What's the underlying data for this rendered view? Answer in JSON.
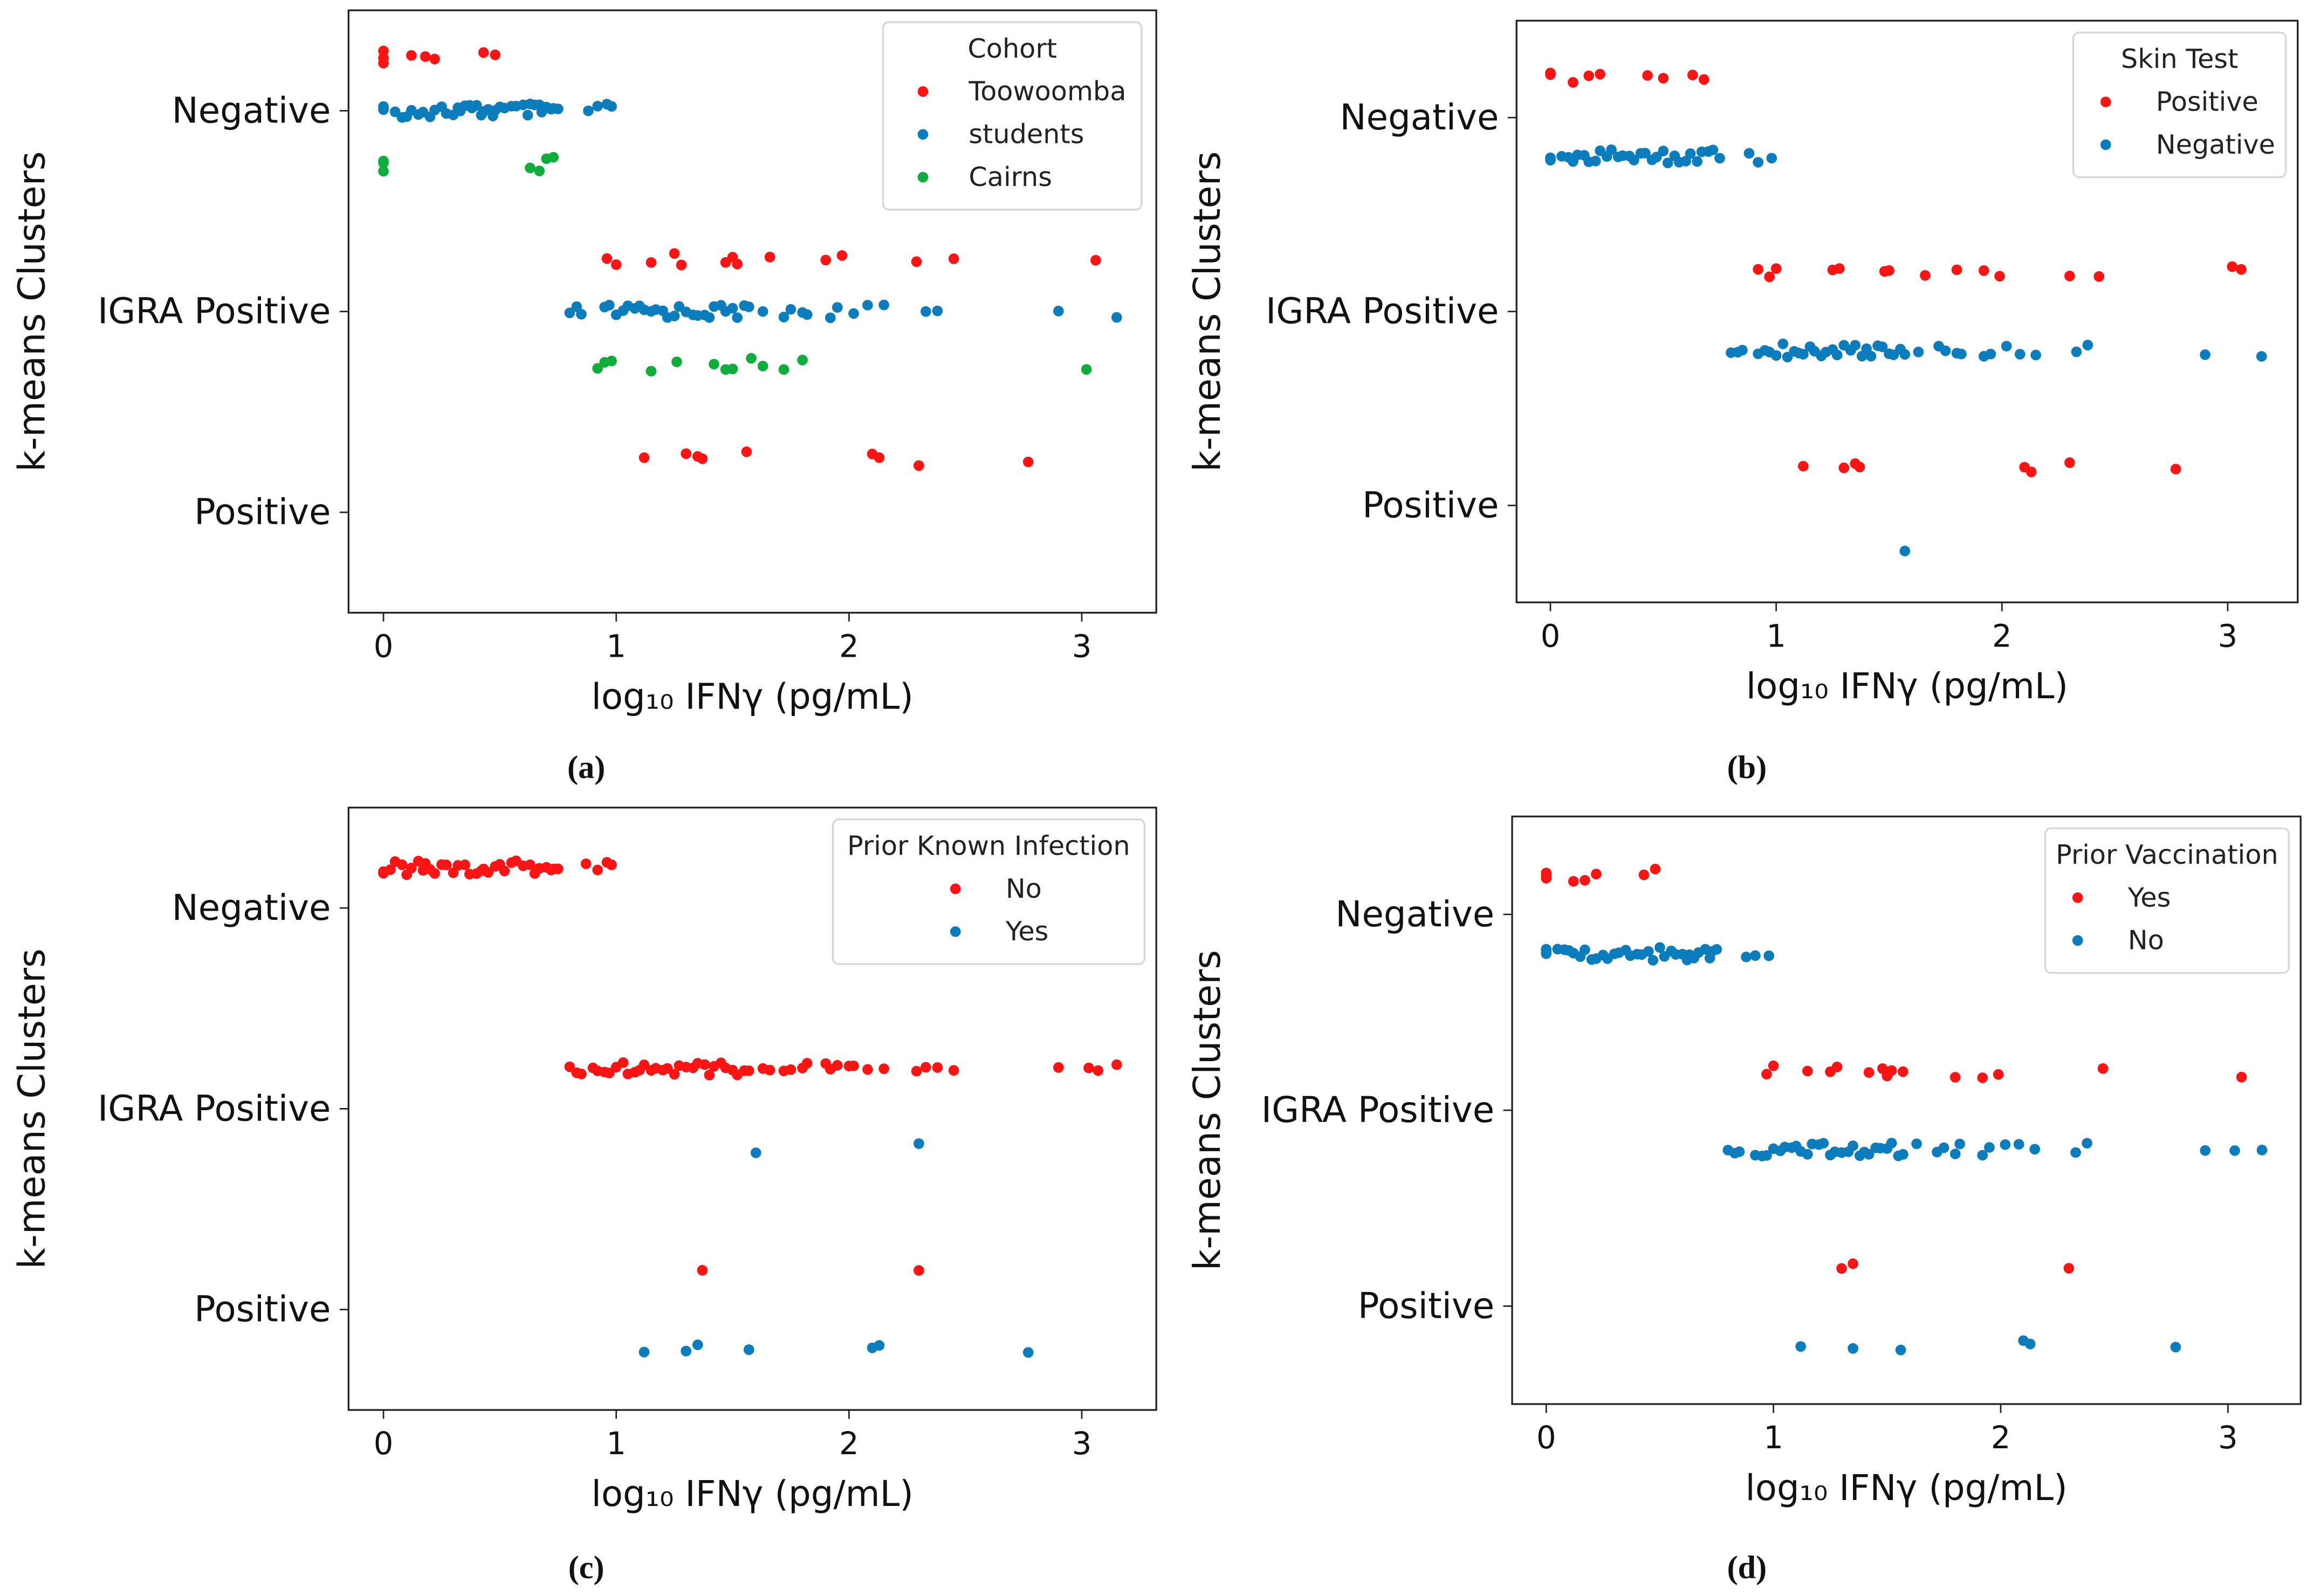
{
  "colors": {
    "red": "#fb1414",
    "blue": "#0b7cbc",
    "green": "#0fae3c"
  },
  "chart_data": [
    {
      "type": "scatter",
      "panel": "(a)",
      "xlabel": "log₁₀ IFNγ (pg/mL)",
      "ylabel": "k-means Clusters",
      "categories": [
        "Negative",
        "IGRA Positive",
        "Positive"
      ],
      "xticks": [
        "0",
        "1",
        "2",
        "3"
      ],
      "xlim": [
        -0.15,
        3.32
      ],
      "legend": {
        "title": "Cohort",
        "placement": "top-right"
      },
      "series": [
        {
          "name": "Toowoomba",
          "color": "red",
          "points": {
            "Negative": [
              0,
              0,
              0,
              0.12,
              0.18,
              0.22,
              0.43,
              0.48
            ],
            "IGRA Positive": [
              0.96,
              1.0,
              1.15,
              1.25,
              1.28,
              1.47,
              1.5,
              1.52,
              1.66,
              1.9,
              1.97,
              2.29,
              2.45,
              3.06
            ],
            "Positive": [
              1.12,
              1.3,
              1.35,
              1.37,
              1.56,
              2.1,
              2.13,
              2.3,
              2.77
            ]
          }
        },
        {
          "name": "students",
          "color": "blue",
          "points": {
            "Negative": [
              0,
              0,
              0,
              0.05,
              0.08,
              0.1,
              0.12,
              0.15,
              0.17,
              0.2,
              0.22,
              0.25,
              0.27,
              0.3,
              0.32,
              0.33,
              0.35,
              0.37,
              0.38,
              0.4,
              0.42,
              0.43,
              0.45,
              0.47,
              0.48,
              0.5,
              0.52,
              0.55,
              0.57,
              0.6,
              0.62,
              0.63,
              0.65,
              0.67,
              0.68,
              0.7,
              0.72,
              0.73,
              0.75,
              0.88,
              0.92,
              0.96,
              0.98
            ],
            "IGRA Positive": [
              0.8,
              0.83,
              0.85,
              0.95,
              0.97,
              1.0,
              1.03,
              1.05,
              1.08,
              1.1,
              1.12,
              1.15,
              1.17,
              1.2,
              1.22,
              1.25,
              1.27,
              1.3,
              1.33,
              1.35,
              1.38,
              1.4,
              1.42,
              1.45,
              1.47,
              1.5,
              1.52,
              1.55,
              1.57,
              1.63,
              1.72,
              1.75,
              1.8,
              1.82,
              1.92,
              1.95,
              2.02,
              2.08,
              2.15,
              2.33,
              2.38,
              2.9,
              3.15
            ],
            "Positive": []
          }
        },
        {
          "name": "Cairns",
          "color": "green",
          "points": {
            "Negative": [
              0,
              0,
              0,
              0.63,
              0.67,
              0.7,
              0.73
            ],
            "IGRA Positive": [
              0.92,
              0.95,
              0.98,
              1.15,
              1.26,
              1.42,
              1.47,
              1.5,
              1.58,
              1.63,
              1.72,
              1.8,
              3.02
            ],
            "Positive": []
          }
        }
      ]
    },
    {
      "type": "scatter",
      "panel": "(b)",
      "xlabel": "log₁₀ IFNγ (pg/mL)",
      "ylabel": "k-means Clusters",
      "categories": [
        "Negative",
        "IGRA Positive",
        "Positive"
      ],
      "xticks": [
        "0",
        "1",
        "2",
        "3"
      ],
      "xlim": [
        -0.15,
        3.31
      ],
      "legend": {
        "title": "Skin Test",
        "placement": "top-right"
      },
      "series": [
        {
          "name": "Positive",
          "color": "red",
          "points": {
            "Negative": [
              0,
              0,
              0.1,
              0.17,
              0.22,
              0.43,
              0.5,
              0.63,
              0.68
            ],
            "IGRA Positive": [
              0.92,
              0.97,
              1.0,
              1.25,
              1.28,
              1.48,
              1.5,
              1.66,
              1.8,
              1.92,
              1.99,
              2.3,
              2.43,
              3.02,
              3.06
            ],
            "Positive": [
              1.12,
              1.3,
              1.35,
              1.37,
              2.1,
              2.13,
              2.3,
              2.77
            ]
          }
        },
        {
          "name": "Negative",
          "color": "blue",
          "points": {
            "Negative": [
              0,
              0,
              0,
              0.05,
              0.08,
              0.1,
              0.12,
              0.15,
              0.17,
              0.2,
              0.22,
              0.25,
              0.27,
              0.3,
              0.32,
              0.35,
              0.37,
              0.4,
              0.42,
              0.45,
              0.47,
              0.5,
              0.52,
              0.55,
              0.57,
              0.6,
              0.62,
              0.65,
              0.67,
              0.7,
              0.72,
              0.75,
              0.88,
              0.92,
              0.98
            ],
            "IGRA Positive": [
              0.8,
              0.83,
              0.85,
              0.92,
              0.95,
              0.97,
              1.0,
              1.03,
              1.05,
              1.08,
              1.1,
              1.12,
              1.15,
              1.17,
              1.2,
              1.22,
              1.25,
              1.27,
              1.3,
              1.33,
              1.35,
              1.38,
              1.4,
              1.42,
              1.45,
              1.47,
              1.5,
              1.52,
              1.55,
              1.57,
              1.63,
              1.72,
              1.75,
              1.8,
              1.82,
              1.92,
              1.95,
              2.02,
              2.08,
              2.15,
              2.33,
              2.38,
              2.9,
              3.15
            ],
            "Positive": [
              1.57
            ]
          }
        }
      ]
    },
    {
      "type": "scatter",
      "panel": "(c)",
      "xlabel": "log₁₀ IFNγ (pg/mL)",
      "ylabel": "k-means Clusters",
      "categories": [
        "Negative",
        "IGRA Positive",
        "Positive"
      ],
      "xticks": [
        "0",
        "1",
        "2",
        "3"
      ],
      "xlim": [
        -0.15,
        3.32
      ],
      "legend": {
        "title": "Prior Known Infection",
        "placement": "top-right"
      },
      "series": [
        {
          "name": "No",
          "color": "red",
          "points": {
            "Negative": [
              0,
              0,
              0,
              0.03,
              0.05,
              0.08,
              0.1,
              0.12,
              0.15,
              0.17,
              0.18,
              0.2,
              0.22,
              0.25,
              0.27,
              0.3,
              0.32,
              0.35,
              0.37,
              0.4,
              0.42,
              0.43,
              0.45,
              0.48,
              0.5,
              0.52,
              0.55,
              0.57,
              0.6,
              0.63,
              0.65,
              0.67,
              0.7,
              0.72,
              0.73,
              0.75,
              0.87,
              0.92,
              0.96,
              0.98
            ],
            "IGRA Positive": [
              0.8,
              0.83,
              0.85,
              0.9,
              0.92,
              0.95,
              0.97,
              1.0,
              1.03,
              1.05,
              1.08,
              1.1,
              1.12,
              1.15,
              1.17,
              1.2,
              1.22,
              1.25,
              1.27,
              1.3,
              1.33,
              1.35,
              1.38,
              1.4,
              1.42,
              1.45,
              1.47,
              1.5,
              1.52,
              1.55,
              1.57,
              1.63,
              1.66,
              1.72,
              1.75,
              1.8,
              1.82,
              1.9,
              1.92,
              1.95,
              2.0,
              2.02,
              2.08,
              2.15,
              2.29,
              2.33,
              2.38,
              2.45,
              2.9,
              3.03,
              3.07,
              3.15
            ],
            "Positive": [
              1.37,
              2.3
            ]
          }
        },
        {
          "name": "Yes",
          "color": "blue",
          "points": {
            "Negative": [],
            "IGRA Positive": [
              1.6,
              2.3
            ],
            "Positive": [
              1.12,
              1.3,
              1.35,
              1.57,
              2.1,
              2.13,
              2.77
            ]
          }
        }
      ]
    },
    {
      "type": "scatter",
      "panel": "(d)",
      "xlabel": "log₁₀ IFNγ (pg/mL)",
      "ylabel": "k-means Clusters",
      "categories": [
        "Negative",
        "IGRA Positive",
        "Positive"
      ],
      "xticks": [
        "0",
        "1",
        "2",
        "3"
      ],
      "xlim": [
        -0.15,
        3.32
      ],
      "legend": {
        "title": "Prior Vaccination",
        "placement": "top-right"
      },
      "series": [
        {
          "name": "Yes",
          "color": "red",
          "points": {
            "Negative": [
              0,
              0,
              0,
              0.12,
              0.17,
              0.22,
              0.43,
              0.48
            ],
            "IGRA Positive": [
              0.97,
              1.0,
              1.15,
              1.25,
              1.28,
              1.42,
              1.48,
              1.5,
              1.52,
              1.57,
              1.8,
              1.92,
              1.99,
              2.45,
              3.06
            ],
            "Positive": [
              1.3,
              1.35,
              2.3
            ]
          }
        },
        {
          "name": "No",
          "color": "blue",
          "points": {
            "Negative": [
              0,
              0,
              0,
              0.05,
              0.08,
              0.1,
              0.12,
              0.15,
              0.17,
              0.2,
              0.22,
              0.25,
              0.27,
              0.3,
              0.32,
              0.35,
              0.37,
              0.4,
              0.42,
              0.45,
              0.47,
              0.5,
              0.52,
              0.55,
              0.57,
              0.6,
              0.62,
              0.63,
              0.65,
              0.67,
              0.7,
              0.72,
              0.73,
              0.75,
              0.88,
              0.92,
              0.98
            ],
            "IGRA Positive": [
              0.8,
              0.83,
              0.85,
              0.92,
              0.95,
              0.97,
              1.0,
              1.03,
              1.05,
              1.08,
              1.1,
              1.12,
              1.15,
              1.17,
              1.2,
              1.22,
              1.25,
              1.27,
              1.3,
              1.33,
              1.35,
              1.38,
              1.4,
              1.42,
              1.45,
              1.47,
              1.5,
              1.52,
              1.55,
              1.57,
              1.63,
              1.72,
              1.75,
              1.8,
              1.82,
              1.92,
              1.95,
              2.02,
              2.08,
              2.15,
              2.33,
              2.38,
              2.9,
              3.03,
              3.15
            ],
            "Positive": [
              1.12,
              1.35,
              1.56,
              2.1,
              2.13,
              2.77
            ]
          }
        }
      ]
    }
  ]
}
